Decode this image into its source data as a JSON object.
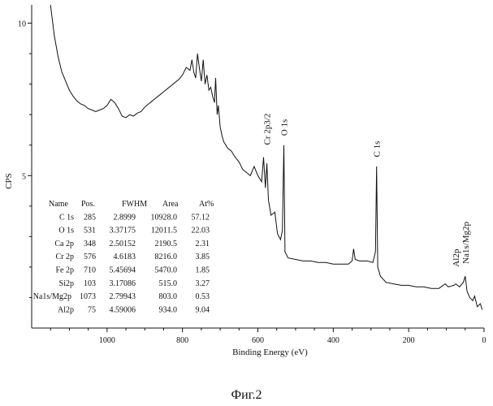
{
  "chart_data": {
    "type": "line",
    "title": "",
    "xlabel": "Binding Energy (eV)",
    "ylabel": "CPS",
    "x_reversed": true,
    "xlim": [
      1200,
      0
    ],
    "ylim": [
      0,
      10.6
    ],
    "x_ticks": [
      1000,
      800,
      600,
      400,
      200,
      0
    ],
    "y_ticks": [
      5,
      10
    ],
    "grid": false,
    "series": [
      {
        "values": [
          [
            1150,
            10.6
          ],
          [
            1140,
            9.6
          ],
          [
            1130,
            8.9
          ],
          [
            1120,
            8.4
          ],
          [
            1110,
            8.1
          ],
          [
            1100,
            7.8
          ],
          [
            1090,
            7.6
          ],
          [
            1080,
            7.45
          ],
          [
            1070,
            7.35
          ],
          [
            1060,
            7.3
          ],
          [
            1050,
            7.2
          ],
          [
            1040,
            7.15
          ],
          [
            1030,
            7.1
          ],
          [
            1020,
            7.15
          ],
          [
            1010,
            7.2
          ],
          [
            1000,
            7.3
          ],
          [
            990,
            7.5
          ],
          [
            980,
            7.4
          ],
          [
            970,
            7.2
          ],
          [
            960,
            6.95
          ],
          [
            950,
            6.9
          ],
          [
            940,
            7.0
          ],
          [
            930,
            6.95
          ],
          [
            920,
            7.05
          ],
          [
            910,
            7.1
          ],
          [
            900,
            7.25
          ],
          [
            890,
            7.35
          ],
          [
            880,
            7.45
          ],
          [
            870,
            7.55
          ],
          [
            860,
            7.65
          ],
          [
            850,
            7.75
          ],
          [
            840,
            7.85
          ],
          [
            830,
            7.95
          ],
          [
            820,
            8.05
          ],
          [
            810,
            8.15
          ],
          [
            800,
            8.3
          ],
          [
            790,
            8.55
          ],
          [
            780,
            8.45
          ],
          [
            775,
            8.8
          ],
          [
            770,
            8.4
          ],
          [
            765,
            8.2
          ],
          [
            760,
            9.0
          ],
          [
            755,
            8.5
          ],
          [
            750,
            8.1
          ],
          [
            745,
            8.8
          ],
          [
            740,
            8.0
          ],
          [
            735,
            8.3
          ],
          [
            730,
            7.8
          ],
          [
            725,
            7.9
          ],
          [
            720,
            7.6
          ],
          [
            715,
            7.4
          ],
          [
            712,
            8.2
          ],
          [
            708,
            7.0
          ],
          [
            705,
            7.3
          ],
          [
            700,
            6.6
          ],
          [
            695,
            6.3
          ],
          [
            690,
            6.1
          ],
          [
            680,
            5.9
          ],
          [
            670,
            5.8
          ],
          [
            660,
            5.6
          ],
          [
            650,
            5.45
          ],
          [
            640,
            5.2
          ],
          [
            630,
            5.1
          ],
          [
            620,
            5.0
          ],
          [
            610,
            5.3
          ],
          [
            600,
            5.0
          ],
          [
            590,
            4.8
          ],
          [
            585,
            5.6
          ],
          [
            580,
            4.6
          ],
          [
            576,
            5.4
          ],
          [
            572,
            4.2
          ],
          [
            565,
            3.7
          ],
          [
            555,
            3.8
          ],
          [
            548,
            3.1
          ],
          [
            540,
            2.9
          ],
          [
            535,
            3.2
          ],
          [
            531,
            6.0
          ],
          [
            528,
            2.5
          ],
          [
            520,
            2.3
          ],
          [
            500,
            2.25
          ],
          [
            480,
            2.2
          ],
          [
            460,
            2.2
          ],
          [
            440,
            2.15
          ],
          [
            420,
            2.15
          ],
          [
            400,
            2.1
          ],
          [
            380,
            2.1
          ],
          [
            360,
            2.1
          ],
          [
            350,
            2.2
          ],
          [
            346,
            2.6
          ],
          [
            342,
            2.25
          ],
          [
            330,
            2.2
          ],
          [
            310,
            2.2
          ],
          [
            295,
            2.15
          ],
          [
            288,
            2.5
          ],
          [
            285,
            5.3
          ],
          [
            282,
            2.0
          ],
          [
            275,
            1.7
          ],
          [
            260,
            1.5
          ],
          [
            240,
            1.45
          ],
          [
            220,
            1.4
          ],
          [
            200,
            1.4
          ],
          [
            180,
            1.35
          ],
          [
            160,
            1.35
          ],
          [
            140,
            1.3
          ],
          [
            120,
            1.3
          ],
          [
            103,
            1.45
          ],
          [
            95,
            1.35
          ],
          [
            80,
            1.4
          ],
          [
            75,
            1.45
          ],
          [
            65,
            1.35
          ],
          [
            55,
            1.5
          ],
          [
            50,
            1.7
          ],
          [
            45,
            1.2
          ],
          [
            38,
            1.0
          ],
          [
            30,
            0.9
          ],
          [
            25,
            1.05
          ],
          [
            18,
            0.7
          ],
          [
            10,
            0.8
          ],
          [
            5,
            0.6
          ]
        ]
      }
    ],
    "annotations": [
      {
        "text": "Cr 2p3/2",
        "x": 576,
        "y": 5.9
      },
      {
        "text": "O 1s",
        "x": 531,
        "y": 6.2
      },
      {
        "text": "C 1s",
        "x": 285,
        "y": 5.5
      },
      {
        "text": "Al2p",
        "x": 75,
        "y": 1.9
      },
      {
        "text": "Na1s/Mg2p",
        "x": 50,
        "y": 2.0
      }
    ],
    "table": {
      "headers": [
        "Name",
        "Pos.",
        "FWHM",
        "Area",
        "At%"
      ],
      "rows": [
        [
          "C 1s",
          "285",
          "2.8999",
          "10928.0",
          "57.12"
        ],
        [
          "O 1s",
          "531",
          "3.37175",
          "12011.5",
          "22.03"
        ],
        [
          "Ca 2p",
          "348",
          "2.50152",
          "2190.5",
          "2.31"
        ],
        [
          "Cr 2p",
          "576",
          "4.6183",
          "8216.0",
          "3.85"
        ],
        [
          "Fe 2p",
          "710",
          "5.45694",
          "5470.0",
          "1.85"
        ],
        [
          "Si2p",
          "103",
          "3.17086",
          "515.0",
          "3.27"
        ],
        [
          "Na1s/Mg2p",
          "1073",
          "2.79943",
          "803.0",
          "0.53"
        ],
        [
          "Al2p",
          "75",
          "4.59006",
          "934.0",
          "9.04"
        ]
      ]
    }
  },
  "caption": "Фиг.2"
}
